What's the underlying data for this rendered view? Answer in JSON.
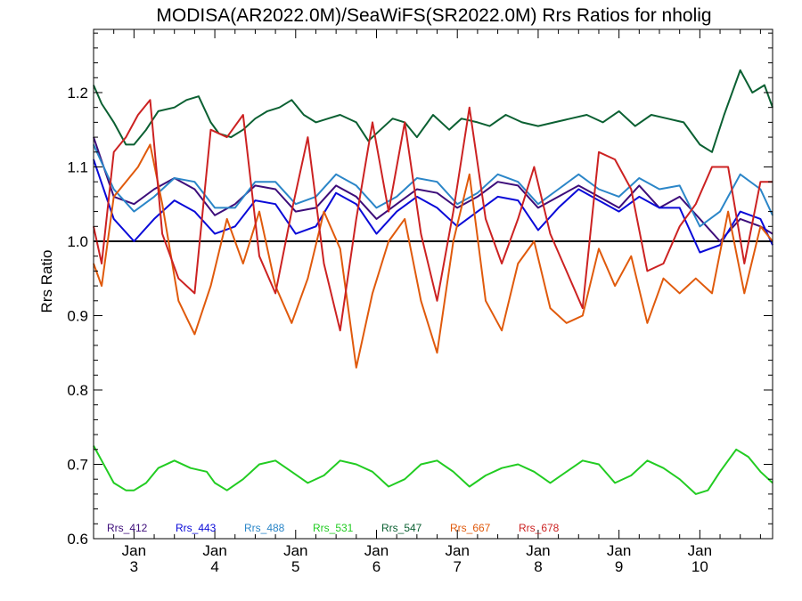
{
  "chart_data": {
    "type": "line",
    "title": "MODISA(AR2022.0M)/SeaWiFS(SR2022.0M)  Rrs Ratios for nholig",
    "xlabel": "",
    "ylabel": "Rrs Ratio",
    "x_range": [
      2.5,
      10.9
    ],
    "ylim": [
      0.6,
      1.285
    ],
    "y_ticks": [
      0.6,
      0.7,
      0.8,
      0.9,
      1.0,
      1.1,
      1.2
    ],
    "y_tick_labels": [
      "0.6",
      "0.7",
      "0.8",
      "0.9",
      "1.0",
      "1.1",
      "1.2"
    ],
    "x_ticks": [
      {
        "x": 3,
        "line1": "Jan",
        "line2": "3"
      },
      {
        "x": 4,
        "line1": "Jan",
        "line2": "4"
      },
      {
        "x": 5,
        "line1": "Jan",
        "line2": "5"
      },
      {
        "x": 6,
        "line1": "Jan",
        "line2": "6"
      },
      {
        "x": 7,
        "line1": "Jan",
        "line2": "7"
      },
      {
        "x": 8,
        "line1": "Jan",
        "line2": "8"
      },
      {
        "x": 9,
        "line1": "Jan",
        "line2": "9"
      },
      {
        "x": 10,
        "line1": "Jan",
        "line2": "10"
      }
    ],
    "reference_line": 1.0,
    "grid": false,
    "legend_position": "bottom-left",
    "series": [
      {
        "name": "Rrs_412",
        "color": "#3d0d7a",
        "x": [
          2.5,
          2.75,
          3.0,
          3.25,
          3.5,
          3.75,
          4.0,
          4.25,
          4.5,
          4.75,
          5.0,
          5.25,
          5.5,
          5.75,
          6.0,
          6.25,
          6.5,
          6.75,
          7.0,
          7.25,
          7.5,
          7.75,
          8.0,
          8.25,
          8.5,
          8.75,
          9.0,
          9.25,
          9.5,
          9.75,
          10.0,
          10.25,
          10.5,
          10.75,
          10.9
        ],
        "y": [
          1.14,
          1.06,
          1.05,
          1.07,
          1.085,
          1.07,
          1.035,
          1.05,
          1.075,
          1.07,
          1.04,
          1.045,
          1.075,
          1.06,
          1.03,
          1.05,
          1.07,
          1.065,
          1.045,
          1.06,
          1.08,
          1.075,
          1.045,
          1.06,
          1.075,
          1.06,
          1.045,
          1.075,
          1.045,
          1.06,
          1.03,
          1.0,
          1.03,
          1.02,
          1.01
        ]
      },
      {
        "name": "Rrs_443",
        "color": "#0a0ad8",
        "x": [
          2.5,
          2.75,
          3.0,
          3.25,
          3.5,
          3.75,
          4.0,
          4.25,
          4.5,
          4.75,
          5.0,
          5.25,
          5.5,
          5.75,
          6.0,
          6.25,
          6.5,
          6.75,
          7.0,
          7.25,
          7.5,
          7.75,
          8.0,
          8.25,
          8.5,
          8.75,
          9.0,
          9.25,
          9.5,
          9.75,
          10.0,
          10.25,
          10.5,
          10.75,
          10.9
        ],
        "y": [
          1.11,
          1.03,
          1.0,
          1.03,
          1.055,
          1.04,
          1.01,
          1.02,
          1.055,
          1.05,
          1.01,
          1.02,
          1.065,
          1.05,
          1.01,
          1.04,
          1.06,
          1.045,
          1.02,
          1.04,
          1.06,
          1.055,
          1.015,
          1.045,
          1.07,
          1.055,
          1.04,
          1.06,
          1.045,
          1.045,
          0.985,
          0.995,
          1.04,
          1.03,
          0.995
        ]
      },
      {
        "name": "Rrs_488",
        "color": "#2b86c8",
        "x": [
          2.5,
          2.75,
          3.0,
          3.25,
          3.5,
          3.75,
          4.0,
          4.25,
          4.5,
          4.75,
          5.0,
          5.25,
          5.5,
          5.75,
          6.0,
          6.25,
          6.5,
          6.75,
          7.0,
          7.25,
          7.5,
          7.75,
          8.0,
          8.25,
          8.5,
          8.75,
          9.0,
          9.25,
          9.5,
          9.75,
          10.0,
          10.25,
          10.5,
          10.75,
          10.9
        ],
        "y": [
          1.13,
          1.07,
          1.04,
          1.06,
          1.085,
          1.08,
          1.045,
          1.045,
          1.08,
          1.08,
          1.05,
          1.06,
          1.09,
          1.075,
          1.045,
          1.06,
          1.085,
          1.08,
          1.05,
          1.065,
          1.09,
          1.08,
          1.05,
          1.07,
          1.09,
          1.07,
          1.06,
          1.085,
          1.07,
          1.075,
          1.02,
          1.04,
          1.09,
          1.07,
          1.035
        ]
      },
      {
        "name": "Rrs_531",
        "color": "#22cc22",
        "x": [
          2.5,
          2.6,
          2.75,
          2.9,
          3.0,
          3.15,
          3.3,
          3.5,
          3.7,
          3.9,
          4.0,
          4.15,
          4.35,
          4.55,
          4.75,
          4.95,
          5.15,
          5.35,
          5.55,
          5.75,
          5.95,
          6.15,
          6.35,
          6.55,
          6.75,
          6.95,
          7.15,
          7.35,
          7.55,
          7.75,
          7.95,
          8.15,
          8.35,
          8.55,
          8.75,
          8.95,
          9.15,
          9.35,
          9.55,
          9.75,
          9.95,
          10.1,
          10.25,
          10.45,
          10.6,
          10.75,
          10.9
        ],
        "y": [
          0.725,
          0.705,
          0.675,
          0.665,
          0.665,
          0.675,
          0.695,
          0.705,
          0.695,
          0.69,
          0.675,
          0.665,
          0.68,
          0.7,
          0.705,
          0.69,
          0.675,
          0.685,
          0.705,
          0.7,
          0.69,
          0.67,
          0.68,
          0.7,
          0.705,
          0.69,
          0.67,
          0.685,
          0.695,
          0.7,
          0.69,
          0.675,
          0.69,
          0.705,
          0.7,
          0.675,
          0.685,
          0.705,
          0.695,
          0.68,
          0.66,
          0.665,
          0.69,
          0.72,
          0.71,
          0.69,
          0.675
        ]
      },
      {
        "name": "Rrs_547",
        "color": "#0b6032",
        "x": [
          2.5,
          2.6,
          2.75,
          2.9,
          3.0,
          3.15,
          3.3,
          3.5,
          3.65,
          3.8,
          3.95,
          4.05,
          4.2,
          4.35,
          4.5,
          4.65,
          4.8,
          4.95,
          5.1,
          5.25,
          5.4,
          5.55,
          5.75,
          5.9,
          6.05,
          6.2,
          6.35,
          6.5,
          6.7,
          6.9,
          7.05,
          7.25,
          7.4,
          7.6,
          7.8,
          8.0,
          8.2,
          8.4,
          8.6,
          8.8,
          9.0,
          9.2,
          9.4,
          9.6,
          9.8,
          10.0,
          10.15,
          10.3,
          10.5,
          10.65,
          10.8,
          10.9
        ],
        "y": [
          1.21,
          1.185,
          1.16,
          1.13,
          1.13,
          1.15,
          1.175,
          1.18,
          1.19,
          1.195,
          1.16,
          1.145,
          1.14,
          1.15,
          1.165,
          1.175,
          1.18,
          1.19,
          1.17,
          1.16,
          1.165,
          1.17,
          1.16,
          1.135,
          1.15,
          1.165,
          1.16,
          1.14,
          1.17,
          1.15,
          1.165,
          1.16,
          1.155,
          1.17,
          1.16,
          1.155,
          1.16,
          1.165,
          1.17,
          1.16,
          1.175,
          1.155,
          1.17,
          1.165,
          1.16,
          1.13,
          1.12,
          1.17,
          1.23,
          1.2,
          1.21,
          1.18
        ]
      },
      {
        "name": "Rrs_667",
        "color": "#e05a0c",
        "x": [
          2.5,
          2.6,
          2.75,
          2.9,
          3.05,
          3.2,
          3.35,
          3.55,
          3.75,
          3.95,
          4.15,
          4.35,
          4.55,
          4.75,
          4.95,
          5.15,
          5.35,
          5.55,
          5.75,
          5.95,
          6.15,
          6.35,
          6.55,
          6.75,
          6.95,
          7.15,
          7.35,
          7.55,
          7.75,
          7.95,
          8.15,
          8.35,
          8.55,
          8.75,
          8.95,
          9.15,
          9.35,
          9.55,
          9.75,
          9.95,
          10.15,
          10.35,
          10.55,
          10.75,
          10.9
        ],
        "y": [
          0.97,
          0.94,
          1.06,
          1.08,
          1.1,
          1.13,
          1.05,
          0.92,
          0.875,
          0.94,
          1.03,
          0.97,
          1.04,
          0.94,
          0.89,
          0.95,
          1.04,
          0.99,
          0.83,
          0.93,
          1.0,
          1.03,
          0.92,
          0.85,
          1.0,
          1.09,
          0.92,
          0.88,
          0.97,
          1.0,
          0.91,
          0.89,
          0.9,
          0.99,
          0.94,
          0.98,
          0.89,
          0.95,
          0.93,
          0.95,
          0.93,
          1.04,
          0.93,
          1.02,
          1.0
        ]
      },
      {
        "name": "Rrs_678",
        "color": "#cc2222",
        "x": [
          2.5,
          2.6,
          2.75,
          2.9,
          3.05,
          3.2,
          3.35,
          3.55,
          3.75,
          3.95,
          4.15,
          4.35,
          4.55,
          4.75,
          4.95,
          5.15,
          5.35,
          5.55,
          5.75,
          5.95,
          6.15,
          6.35,
          6.55,
          6.75,
          6.95,
          7.15,
          7.35,
          7.55,
          7.75,
          7.95,
          8.15,
          8.35,
          8.55,
          8.75,
          8.95,
          9.15,
          9.35,
          9.55,
          9.75,
          9.95,
          10.15,
          10.35,
          10.55,
          10.75,
          10.9
        ],
        "y": [
          1.02,
          0.97,
          1.12,
          1.14,
          1.17,
          1.19,
          1.01,
          0.95,
          0.93,
          1.15,
          1.14,
          1.17,
          0.98,
          0.93,
          1.04,
          1.14,
          0.97,
          0.88,
          1.03,
          1.16,
          1.04,
          1.16,
          1.01,
          0.92,
          1.04,
          1.18,
          1.03,
          0.97,
          1.03,
          1.1,
          1.01,
          0.96,
          0.91,
          1.12,
          1.11,
          1.07,
          0.96,
          0.97,
          1.02,
          1.05,
          1.1,
          1.1,
          0.97,
          1.08,
          1.08
        ]
      }
    ]
  }
}
